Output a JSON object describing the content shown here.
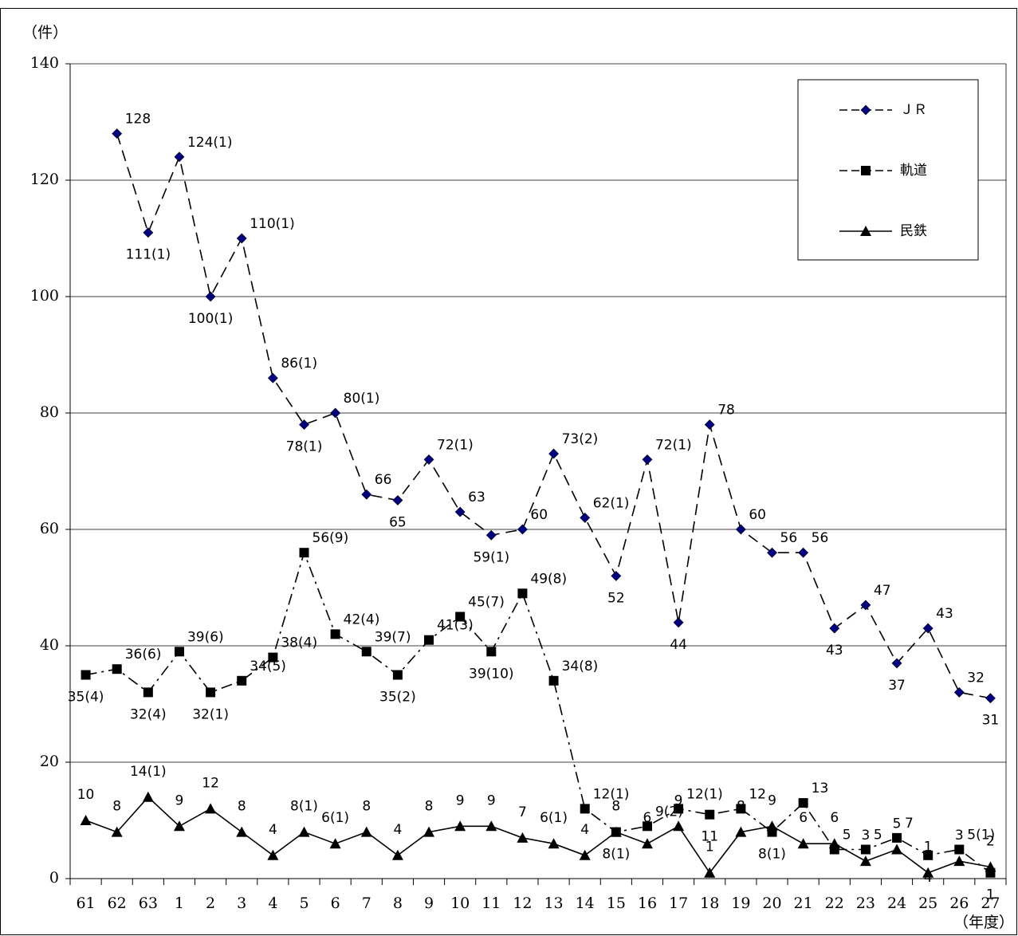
{
  "chart_data": {
    "type": "line",
    "y_label": "（件）",
    "x_label": "（年度）",
    "categories": [
      "61",
      "62",
      "63",
      "1",
      "2",
      "3",
      "4",
      "5",
      "6",
      "7",
      "8",
      "9",
      "10",
      "11",
      "12",
      "13",
      "14",
      "15",
      "16",
      "17",
      "18",
      "19",
      "20",
      "21",
      "22",
      "23",
      "24",
      "25",
      "26",
      "27"
    ],
    "series": [
      {
        "name": "ＪＲ",
        "color": "#000080",
        "line_color": "#000000",
        "dash": "14 8",
        "marker": "diamond",
        "values": [
          null,
          128,
          111,
          124,
          100,
          110,
          86,
          78,
          80,
          66,
          65,
          72,
          63,
          59,
          60,
          73,
          62,
          52,
          72,
          44,
          78,
          60,
          56,
          56,
          43,
          47,
          37,
          43,
          32,
          31
        ],
        "value_labels": [
          null,
          "128",
          "111(1)",
          "124(1)",
          "100(1)",
          "110(1)",
          "86(1)",
          "78(1)",
          "80(1)",
          "66",
          "65",
          "72(1)",
          "63",
          "59(1)",
          "60",
          "73(2)",
          "62(1)",
          "52",
          "72(1)",
          "44",
          "78",
          "60",
          "56",
          "56",
          "43",
          "47",
          "37",
          "43",
          "32",
          "31"
        ]
      },
      {
        "name": "軌道",
        "color": "#000000",
        "line_color": "#000000",
        "dash": "14 6 3 6",
        "marker": "square",
        "values": [
          35,
          36,
          32,
          39,
          32,
          34,
          38,
          56,
          42,
          39,
          35,
          41,
          45,
          39,
          49,
          34,
          12,
          8,
          9,
          12,
          11,
          12,
          8,
          13,
          5,
          5,
          7,
          4,
          5,
          1
        ],
        "value_labels": [
          "35(4)",
          "36(6)",
          "32(4)",
          "39(6)",
          "32(1)",
          "34(5)",
          "38(4)",
          "56(9)",
          "42(4)",
          "39(7)",
          "35(2)",
          "41(3)",
          "45(7)",
          "39(10)",
          "49(8)",
          "34(8)",
          "12(1)",
          "8(1)",
          "9(2)",
          "12(1)",
          "11",
          "12",
          "8(1)",
          "13",
          "5",
          "5",
          "7",
          "4",
          "5(1)",
          "1"
        ]
      },
      {
        "name": "民鉄",
        "color": "#000000",
        "line_color": "#000000",
        "dash": "",
        "marker": "triangle",
        "values": [
          10,
          8,
          14,
          9,
          12,
          8,
          4,
          8,
          6,
          8,
          4,
          8,
          9,
          9,
          7,
          6,
          4,
          8,
          6,
          9,
          1,
          8,
          9,
          6,
          6,
          3,
          5,
          1,
          3,
          2
        ],
        "value_labels": [
          "10",
          "8",
          "14(1)",
          "9",
          "12",
          "8",
          "4",
          "8(1)",
          "6(1)",
          "8",
          "4",
          "8",
          "9",
          "9",
          "7",
          "6(1)",
          "4",
          "8",
          "6",
          "9",
          "1",
          "8",
          "9",
          "6",
          "6",
          "3",
          "5",
          "1",
          "3",
          "2"
        ]
      }
    ],
    "ylim": [
      0,
      140
    ],
    "yticks": [
      0,
      20,
      40,
      60,
      80,
      100,
      120,
      140
    ],
    "grid": true,
    "legend": "upper right"
  }
}
